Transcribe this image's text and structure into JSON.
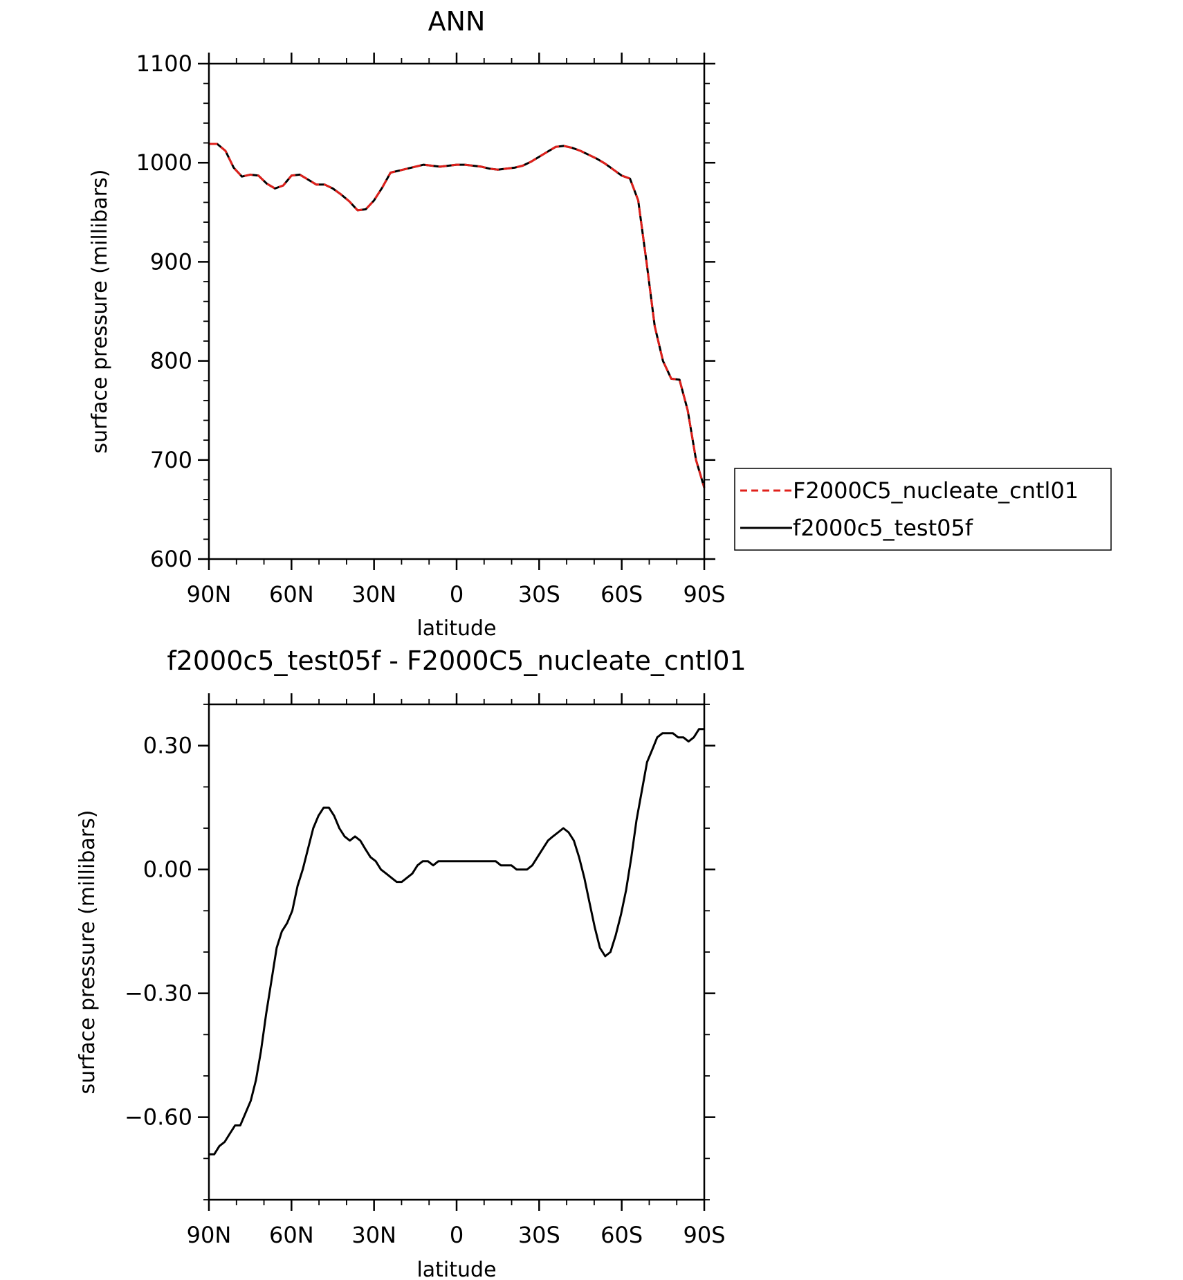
{
  "chart_data": [
    {
      "type": "line",
      "title": "ANN",
      "xlabel": "latitude",
      "ylabel": "surface pressure (millibars)",
      "xlim": [
        90,
        -90
      ],
      "ylim": [
        600,
        1100
      ],
      "x_ticks": [
        90,
        60,
        30,
        0,
        -30,
        -60,
        -90
      ],
      "x_tick_labels": [
        "90N",
        "60N",
        "30N",
        "0",
        "30S",
        "60S",
        "90S"
      ],
      "y_ticks": [
        600,
        700,
        800,
        900,
        1000,
        1100
      ],
      "y_tick_labels": [
        "600",
        "700",
        "800",
        "900",
        "1000",
        "1100"
      ],
      "legend_position": "right",
      "series": [
        {
          "name": "F2000C5_nucleate_cntl01",
          "color": "#e0201b",
          "style": "dashed",
          "x": [
            90,
            87,
            84,
            81,
            78,
            75,
            72,
            69,
            66,
            63,
            60,
            57,
            54,
            51,
            48,
            45,
            42,
            39,
            36,
            33,
            30,
            27,
            24,
            21,
            18,
            15,
            12,
            9,
            6,
            3,
            0,
            -3,
            -6,
            -9,
            -12,
            -15,
            -18,
            -21,
            -24,
            -27,
            -30,
            -33,
            -36,
            -39,
            -42,
            -45,
            -48,
            -51,
            -54,
            -57,
            -60,
            -63,
            -66,
            -69,
            -72,
            -75,
            -78,
            -81,
            -84,
            -87,
            -90
          ],
          "y": [
            1019,
            1019,
            1012,
            995,
            986,
            988,
            987,
            979,
            974,
            977,
            987,
            988,
            983,
            978,
            978,
            974,
            968,
            961,
            952,
            953,
            962,
            975,
            990,
            992,
            994,
            996,
            998,
            997,
            996,
            997,
            998,
            998,
            997,
            996,
            994,
            993,
            994,
            995,
            997,
            1001,
            1006,
            1011,
            1016,
            1017,
            1015,
            1012,
            1008,
            1004,
            999,
            993,
            987,
            984,
            962,
            900,
            835,
            800,
            782,
            781,
            750,
            700,
            672
          ]
        },
        {
          "name": "f2000c5_test05f",
          "color": "#000000",
          "style": "solid",
          "x": [
            90,
            87,
            84,
            81,
            78,
            75,
            72,
            69,
            66,
            63,
            60,
            57,
            54,
            51,
            48,
            45,
            42,
            39,
            36,
            33,
            30,
            27,
            24,
            21,
            18,
            15,
            12,
            9,
            6,
            3,
            0,
            -3,
            -6,
            -9,
            -12,
            -15,
            -18,
            -21,
            -24,
            -27,
            -30,
            -33,
            -36,
            -39,
            -42,
            -45,
            -48,
            -51,
            -54,
            -57,
            -60,
            -63,
            -66,
            -69,
            -72,
            -75,
            -78,
            -81,
            -84,
            -87,
            -90
          ],
          "y": [
            1019,
            1019,
            1012,
            995,
            986,
            988,
            987,
            979,
            974,
            977,
            987,
            988,
            983,
            978,
            978,
            974,
            968,
            961,
            952,
            953,
            962,
            975,
            990,
            992,
            994,
            996,
            998,
            997,
            996,
            997,
            998,
            998,
            997,
            996,
            994,
            993,
            994,
            995,
            997,
            1001,
            1006,
            1011,
            1016,
            1017,
            1015,
            1012,
            1008,
            1004,
            999,
            993,
            987,
            984,
            962,
            900,
            835,
            800,
            782,
            781,
            750,
            700,
            672
          ]
        }
      ]
    },
    {
      "type": "line",
      "title": "f2000c5_test05f - F2000C5_nucleate_cntl01",
      "xlabel": "latitude",
      "ylabel": "surface pressure (millibars)",
      "xlim": [
        90,
        -90
      ],
      "ylim": [
        -0.8,
        0.4
      ],
      "x_ticks": [
        90,
        60,
        30,
        0,
        -30,
        -60,
        -90
      ],
      "x_tick_labels": [
        "90N",
        "60N",
        "30N",
        "0",
        "30S",
        "60S",
        "90S"
      ],
      "y_ticks": [
        -0.6,
        -0.3,
        0.0,
        0.3
      ],
      "y_tick_labels": [
        "−0.60",
        "−0.30",
        "0.00",
        "0.30"
      ],
      "series": [
        {
          "color": "#000000",
          "style": "solid",
          "x": [
            90,
            88.1,
            86.2,
            84.3,
            82.4,
            80.5,
            78.6,
            76.7,
            74.8,
            72.9,
            71.1,
            69.2,
            67.3,
            65.4,
            63.5,
            61.6,
            59.7,
            57.8,
            55.9,
            54.0,
            52.1,
            50.2,
            48.3,
            46.4,
            44.5,
            42.6,
            40.7,
            38.8,
            36.9,
            35.0,
            33.2,
            31.3,
            29.4,
            27.5,
            25.6,
            23.7,
            21.8,
            19.9,
            18.0,
            16.1,
            14.2,
            12.3,
            10.4,
            8.5,
            6.6,
            4.7,
            2.8,
            0.9,
            -0.9,
            -2.8,
            -4.7,
            -6.6,
            -8.5,
            -10.4,
            -12.3,
            -14.2,
            -16.1,
            -18.0,
            -19.9,
            -21.8,
            -23.7,
            -25.6,
            -27.5,
            -29.4,
            -31.3,
            -33.2,
            -35.0,
            -36.9,
            -38.8,
            -40.7,
            -42.6,
            -44.5,
            -46.4,
            -48.3,
            -50.2,
            -52.1,
            -54.0,
            -55.9,
            -57.8,
            -59.7,
            -61.6,
            -63.5,
            -65.4,
            -67.3,
            -69.2,
            -71.1,
            -72.9,
            -74.8,
            -76.7,
            -78.6,
            -80.5,
            -82.4,
            -84.3,
            -86.2,
            -88.1,
            -90
          ],
          "y": [
            -0.69,
            -0.69,
            -0.67,
            -0.66,
            -0.64,
            -0.62,
            -0.62,
            -0.59,
            -0.56,
            -0.51,
            -0.44,
            -0.35,
            -0.27,
            -0.19,
            -0.15,
            -0.13,
            -0.1,
            -0.04,
            0.0,
            0.05,
            0.1,
            0.13,
            0.15,
            0.15,
            0.13,
            0.1,
            0.08,
            0.07,
            0.08,
            0.07,
            0.05,
            0.03,
            0.02,
            0.0,
            -0.01,
            -0.02,
            -0.03,
            -0.03,
            -0.02,
            -0.01,
            0.01,
            0.02,
            0.02,
            0.01,
            0.02,
            0.02,
            0.02,
            0.02,
            0.02,
            0.02,
            0.02,
            0.02,
            0.02,
            0.02,
            0.02,
            0.02,
            0.01,
            0.01,
            0.01,
            0.0,
            0.0,
            0.0,
            0.01,
            0.03,
            0.05,
            0.07,
            0.08,
            0.09,
            0.1,
            0.09,
            0.07,
            0.03,
            -0.02,
            -0.08,
            -0.14,
            -0.19,
            -0.21,
            -0.2,
            -0.16,
            -0.11,
            -0.05,
            0.03,
            0.12,
            0.19,
            0.26,
            0.29,
            0.32,
            0.33,
            0.33,
            0.33,
            0.32,
            0.32,
            0.31,
            0.32,
            0.34,
            0.34
          ]
        }
      ]
    }
  ]
}
